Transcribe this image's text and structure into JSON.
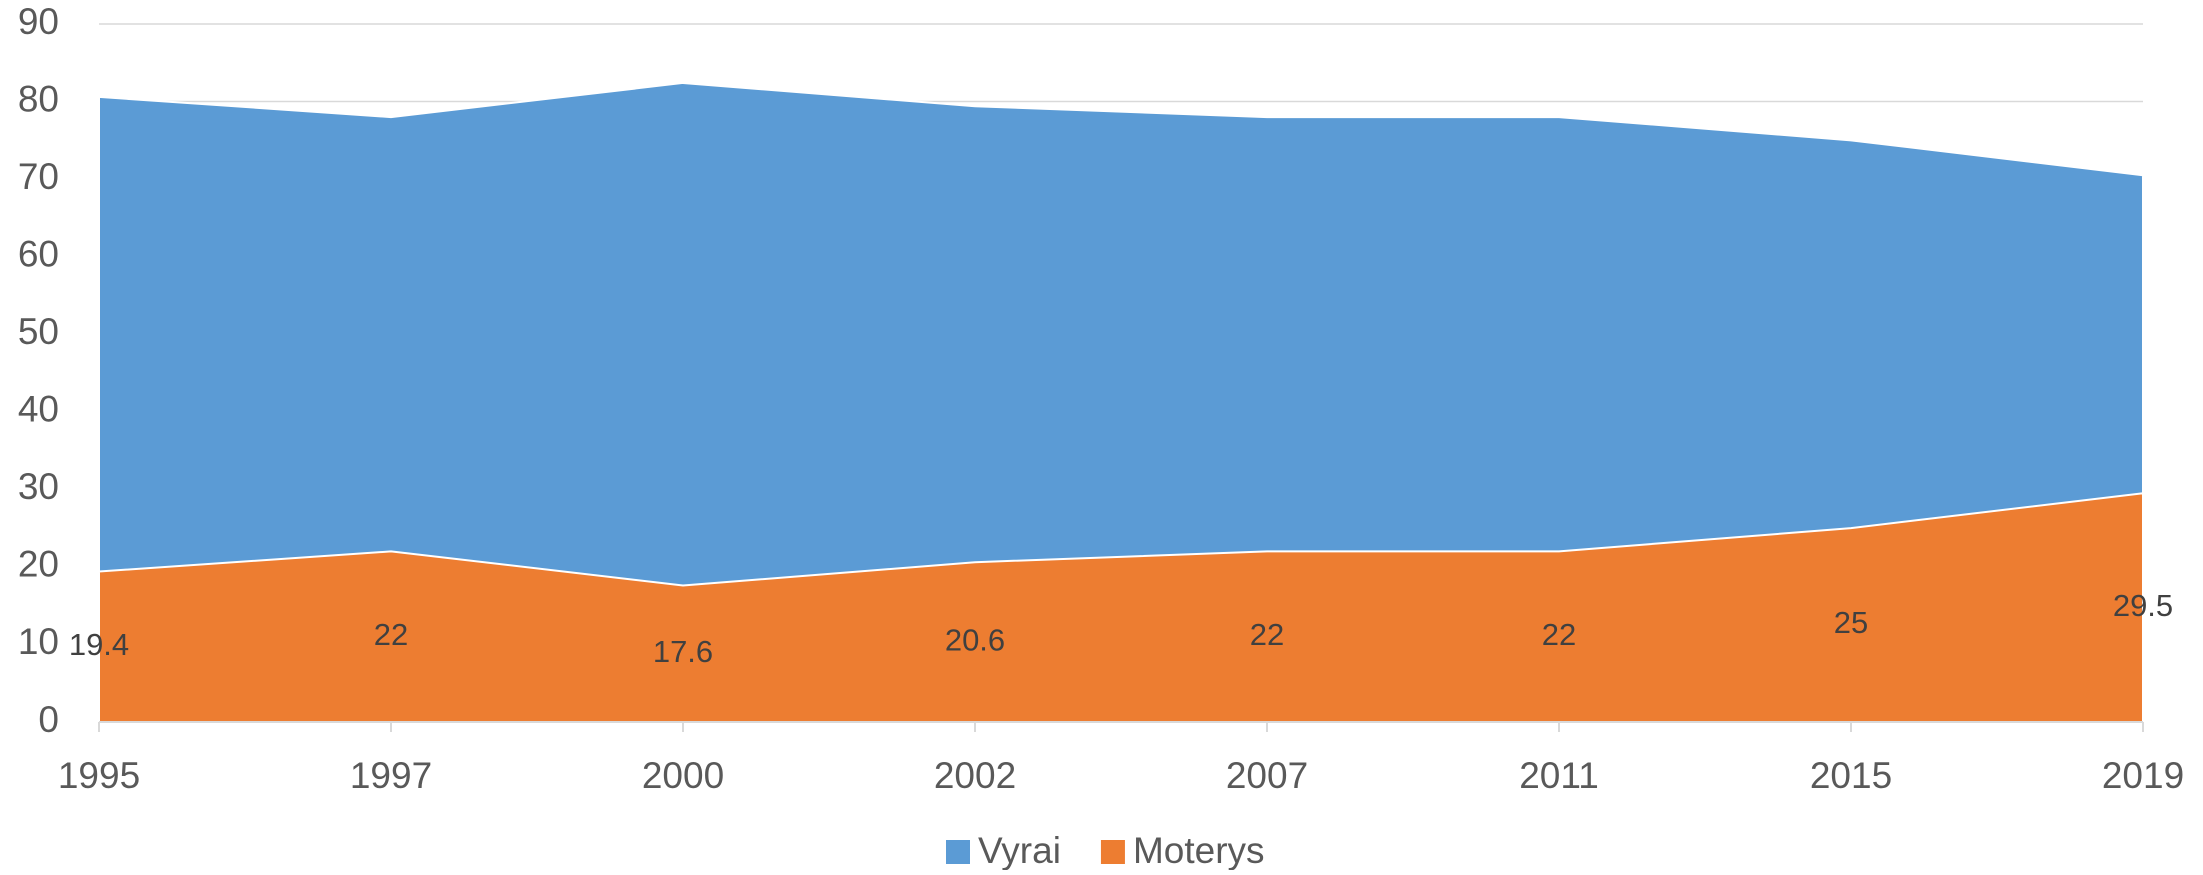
{
  "chart_data": {
    "type": "area",
    "categories": [
      "1995",
      "1997",
      "2000",
      "2002",
      "2007",
      "2011",
      "2015",
      "2019"
    ],
    "series": [
      {
        "name": "Vyrai",
        "color": "#5b9bd5",
        "values": [
          80.6,
          78,
          82.4,
          79.4,
          78,
          78,
          75,
          70.5
        ]
      },
      {
        "name": "Moterys",
        "color": "#ed7d31",
        "values": [
          19.4,
          22,
          17.6,
          20.6,
          22,
          22,
          25,
          29.5
        ],
        "data_labels": true
      }
    ],
    "ylim": [
      0,
      90
    ],
    "yticks": [
      0,
      10,
      20,
      30,
      40,
      50,
      60,
      70,
      80,
      90
    ],
    "grid": true,
    "legend": "bottom"
  }
}
